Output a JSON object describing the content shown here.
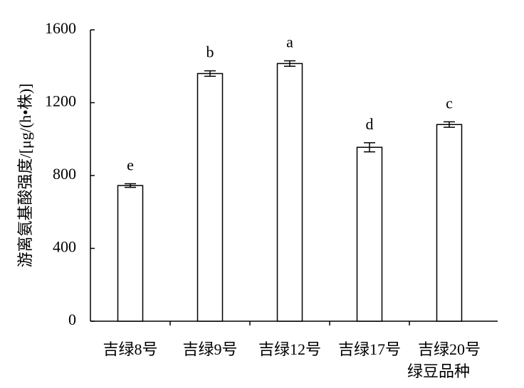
{
  "chart_data": {
    "type": "bar",
    "categories": [
      "吉绿8号",
      "吉绿9号",
      "吉绿12号",
      "吉绿17号",
      "吉绿20号"
    ],
    "values": [
      745,
      1360,
      1415,
      955,
      1080
    ],
    "errors": [
      10,
      15,
      15,
      25,
      15
    ],
    "value_labels": [
      "e",
      "b",
      "a",
      "d",
      "c"
    ],
    "x_label": "绿豆品种",
    "y_label": "游离氨基酸强度/[μg/(h•株)]",
    "color": "#ffffff",
    "ylim": [
      0,
      1600
    ],
    "yticks": [
      0,
      400,
      800,
      1200,
      1600
    ],
    "grid": false
  }
}
